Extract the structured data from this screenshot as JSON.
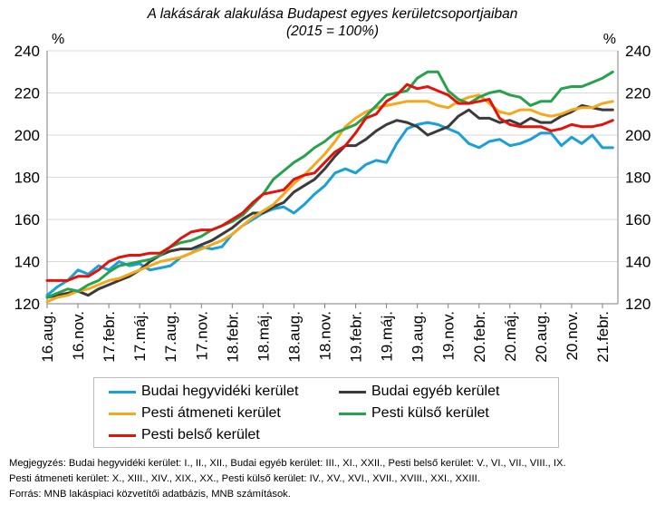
{
  "chart_data": {
    "type": "line",
    "title": "A lakásárak alakulása Budapest egyes kerületcsoportjaiban",
    "subtitle": "(2015 = 100%)",
    "ylabel_left": "%",
    "ylabel_right": "%",
    "ylim": [
      120,
      240
    ],
    "yticks": [
      120,
      140,
      160,
      180,
      200,
      220,
      240
    ],
    "grid": true,
    "categories": [
      "16.aug.",
      "16.nov.",
      "17.febr.",
      "17.máj.",
      "17.aug.",
      "17.nov.",
      "18.febr.",
      "18.máj.",
      "18.aug.",
      "18.nov.",
      "19.febr.",
      "19.máj.",
      "19.aug.",
      "19.nov.",
      "20.febr.",
      "20.máj.",
      "20.aug.",
      "20.nov.",
      "21.febr."
    ],
    "x_start": 2016.5,
    "x_end": 2021.125,
    "series": [
      {
        "name": "Budai hegyvidéki kerület",
        "color": "#1aa0d8",
        "x": [
          2016.5,
          2016.583,
          2016.667,
          2016.75,
          2016.833,
          2016.917,
          2017.0,
          2017.083,
          2017.167,
          2017.25,
          2017.333,
          2017.417,
          2017.5,
          2017.583,
          2017.667,
          2017.75,
          2017.833,
          2017.917,
          2018.0,
          2018.083,
          2018.167,
          2018.25,
          2018.333,
          2018.417,
          2018.5,
          2018.583,
          2018.667,
          2018.75,
          2018.833,
          2018.917,
          2019.0,
          2019.083,
          2019.167,
          2019.25,
          2019.333,
          2019.417,
          2019.5,
          2019.583,
          2019.667,
          2019.75,
          2019.833,
          2019.917,
          2020.0,
          2020.083,
          2020.167,
          2020.25,
          2020.333,
          2020.417,
          2020.5,
          2020.583,
          2020.667,
          2020.75,
          2020.833,
          2020.917,
          2021.0,
          2021.083
        ],
        "values": [
          124,
          128,
          131,
          136,
          134,
          138,
          136,
          140,
          138,
          139,
          136,
          137,
          138,
          142,
          144,
          147,
          146,
          147,
          153,
          157,
          160,
          163,
          165,
          166,
          163,
          167,
          172,
          176,
          182,
          184,
          182,
          186,
          188,
          187,
          196,
          203,
          205,
          206,
          205,
          203,
          201,
          196,
          194,
          197,
          198,
          195,
          196,
          198,
          201,
          201,
          195,
          199,
          196,
          200,
          194,
          194
        ]
      },
      {
        "name": "Budai egyéb kerület",
        "color": "#3b3b3b",
        "x": [
          2016.5,
          2016.583,
          2016.667,
          2016.75,
          2016.833,
          2016.917,
          2017.0,
          2017.083,
          2017.167,
          2017.25,
          2017.333,
          2017.417,
          2017.5,
          2017.583,
          2017.667,
          2017.75,
          2017.833,
          2017.917,
          2018.0,
          2018.083,
          2018.167,
          2018.25,
          2018.333,
          2018.417,
          2018.5,
          2018.583,
          2018.667,
          2018.75,
          2018.833,
          2018.917,
          2019.0,
          2019.083,
          2019.167,
          2019.25,
          2019.333,
          2019.417,
          2019.5,
          2019.583,
          2019.667,
          2019.75,
          2019.833,
          2019.917,
          2020.0,
          2020.083,
          2020.167,
          2020.25,
          2020.333,
          2020.417,
          2020.5,
          2020.583,
          2020.667,
          2020.75,
          2020.833,
          2020.917,
          2021.0,
          2021.083
        ],
        "values": [
          123,
          124,
          125,
          126,
          124,
          127,
          129,
          131,
          133,
          136,
          140,
          143,
          145,
          146,
          146,
          148,
          150,
          153,
          156,
          160,
          163,
          163,
          166,
          168,
          173,
          176,
          179,
          184,
          190,
          195,
          195,
          198,
          202,
          205,
          207,
          206,
          204,
          200,
          202,
          204,
          209,
          212,
          208,
          208,
          206,
          207,
          205,
          208,
          206,
          206,
          209,
          211,
          214,
          213,
          212,
          212
        ]
      },
      {
        "name": "Pesti átmeneti kerület",
        "color": "#f5a81c",
        "x": [
          2016.5,
          2016.583,
          2016.667,
          2016.75,
          2016.833,
          2016.917,
          2017.0,
          2017.083,
          2017.167,
          2017.25,
          2017.333,
          2017.417,
          2017.5,
          2017.583,
          2017.667,
          2017.75,
          2017.833,
          2017.917,
          2018.0,
          2018.083,
          2018.167,
          2018.25,
          2018.333,
          2018.417,
          2018.5,
          2018.583,
          2018.667,
          2018.75,
          2018.833,
          2018.917,
          2019.0,
          2019.083,
          2019.167,
          2019.25,
          2019.333,
          2019.417,
          2019.5,
          2019.583,
          2019.667,
          2019.75,
          2019.833,
          2019.917,
          2020.0,
          2020.083,
          2020.167,
          2020.25,
          2020.333,
          2020.417,
          2020.5,
          2020.583,
          2020.667,
          2020.75,
          2020.833,
          2020.917,
          2021.0,
          2021.083
        ],
        "values": [
          121,
          123,
          124,
          126,
          127,
          129,
          131,
          132,
          134,
          136,
          138,
          140,
          141,
          142,
          144,
          146,
          148,
          150,
          153,
          157,
          161,
          164,
          167,
          172,
          177,
          181,
          186,
          191,
          197,
          204,
          208,
          211,
          213,
          214,
          215,
          216,
          216,
          216,
          214,
          213,
          216,
          218,
          219,
          215,
          211,
          210,
          212,
          212,
          210,
          209,
          210,
          212,
          213,
          213,
          215,
          216
        ]
      },
      {
        "name": "Pesti külső kerület",
        "color": "#27a24c",
        "x": [
          2016.5,
          2016.583,
          2016.667,
          2016.75,
          2016.833,
          2016.917,
          2017.0,
          2017.083,
          2017.167,
          2017.25,
          2017.333,
          2017.417,
          2017.5,
          2017.583,
          2017.667,
          2017.75,
          2017.833,
          2017.917,
          2018.0,
          2018.083,
          2018.167,
          2018.25,
          2018.333,
          2018.417,
          2018.5,
          2018.583,
          2018.667,
          2018.75,
          2018.833,
          2018.917,
          2019.0,
          2019.083,
          2019.167,
          2019.25,
          2019.333,
          2019.417,
          2019.5,
          2019.583,
          2019.667,
          2019.75,
          2019.833,
          2019.917,
          2020.0,
          2020.083,
          2020.167,
          2020.25,
          2020.333,
          2020.417,
          2020.5,
          2020.583,
          2020.667,
          2020.75,
          2020.833,
          2020.917,
          2021.0,
          2021.083
        ],
        "values": [
          123,
          125,
          127,
          126,
          129,
          131,
          135,
          138,
          139,
          140,
          141,
          143,
          147,
          149,
          150,
          152,
          155,
          157,
          159,
          162,
          167,
          172,
          179,
          183,
          187,
          190,
          194,
          197,
          201,
          203,
          205,
          209,
          214,
          219,
          220,
          221,
          227,
          230,
          230,
          221,
          217,
          215,
          218,
          220,
          221,
          219,
          218,
          214,
          216,
          216,
          222,
          223,
          223,
          225,
          227,
          230
        ]
      },
      {
        "name": "Pesti belső kerület",
        "color": "#e3120b",
        "x": [
          2016.5,
          2016.583,
          2016.667,
          2016.75,
          2016.833,
          2016.917,
          2017.0,
          2017.083,
          2017.167,
          2017.25,
          2017.333,
          2017.417,
          2017.5,
          2017.583,
          2017.667,
          2017.75,
          2017.833,
          2017.917,
          2018.0,
          2018.083,
          2018.167,
          2018.25,
          2018.333,
          2018.417,
          2018.5,
          2018.583,
          2018.667,
          2018.75,
          2018.833,
          2018.917,
          2019.0,
          2019.083,
          2019.167,
          2019.25,
          2019.333,
          2019.417,
          2019.5,
          2019.583,
          2019.667,
          2019.75,
          2019.833,
          2019.917,
          2020.0,
          2020.083,
          2020.167,
          2020.25,
          2020.333,
          2020.417,
          2020.5,
          2020.583,
          2020.667,
          2020.75,
          2020.833,
          2020.917,
          2021.0,
          2021.083
        ],
        "values": [
          131,
          131,
          131,
          133,
          133,
          136,
          140,
          142,
          143,
          143,
          144,
          144,
          147,
          151,
          154,
          155,
          155,
          157,
          160,
          163,
          168,
          172,
          173,
          174,
          179,
          181,
          182,
          187,
          192,
          195,
          201,
          208,
          210,
          216,
          219,
          224,
          222,
          223,
          221,
          219,
          215,
          215,
          216,
          217,
          208,
          205,
          204,
          204,
          204,
          202,
          203,
          205,
          204,
          204,
          205,
          207
        ]
      }
    ]
  },
  "notes": {
    "line1": "Megjegyzés: Budai hegyvidéki kerület: I., II., XII., Budai egyéb kerület: III., XI., XXII., Pesti belső kerület: V., VI., VII., VIII., IX.",
    "line2": "Pesti átmeneti kerület: X., XIII., XIV., XIX., XX., Pesti külső kerület: IV., XV., XVI., XVII., XVIII., XXI., XXIII.",
    "line3": "Forrás: MNB lakáspiaci közvetítői adatbázis, MNB számítások."
  }
}
